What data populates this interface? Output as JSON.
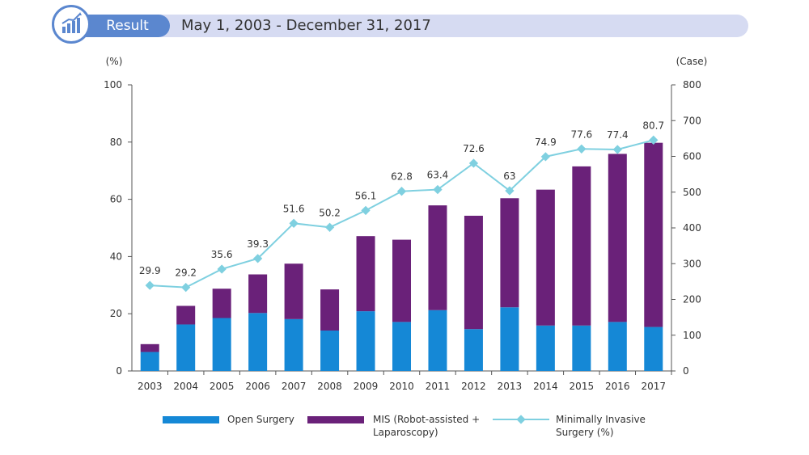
{
  "header": {
    "badge_label": "Result",
    "date_range": "May 1, 2003 - December 31, 2017"
  },
  "colors": {
    "open": "#1588d6",
    "mis": "#6a2179",
    "line": "#7fd0e0",
    "header_bar": "#d6dbf2",
    "pill": "#5b87cf"
  },
  "chart_data": {
    "type": "bar",
    "categories": [
      "2003",
      "2004",
      "2005",
      "2006",
      "2007",
      "2008",
      "2009",
      "2010",
      "2011",
      "2012",
      "2013",
      "2014",
      "2015",
      "2016",
      "2017"
    ],
    "series": [
      {
        "name": "Open Surgery",
        "type": "bar",
        "axis": "right",
        "values": [
          53,
          130,
          148,
          162,
          145,
          113,
          167,
          137,
          170,
          117,
          178,
          127,
          127,
          137,
          123
        ]
      },
      {
        "name": "MIS (Robot-assisted + Laparoscopy)",
        "type": "bar",
        "axis": "right",
        "values": [
          22,
          52,
          82,
          108,
          155,
          115,
          210,
          230,
          293,
          317,
          305,
          380,
          445,
          470,
          515
        ]
      },
      {
        "name": "Minimally Invasive Surgery (%)",
        "type": "line",
        "axis": "left",
        "values": [
          29.9,
          29.2,
          35.6,
          39.3,
          51.6,
          50.2,
          56.1,
          62.8,
          63.4,
          72.6,
          63,
          74.9,
          77.6,
          77.4,
          80.7
        ]
      }
    ],
    "stacked": true,
    "line_labels": [
      "29.9",
      "29.2",
      "35.6",
      "39.3",
      "51.6",
      "50.2",
      "56.1",
      "62.8",
      "63.4",
      "72.6",
      "63",
      "74.9",
      "77.6",
      "77.4",
      "80.7"
    ],
    "y_left": {
      "unit": "(%)",
      "ylim": [
        0,
        100
      ],
      "ticks": [
        "0",
        "20",
        "40",
        "60",
        "80",
        "100"
      ]
    },
    "y_right": {
      "unit": "(Case)",
      "ylim": [
        0,
        800
      ],
      "ticks": [
        "0",
        "100",
        "200",
        "300",
        "400",
        "500",
        "600",
        "700",
        "800"
      ]
    },
    "legend": {
      "position": "bottom",
      "items": [
        {
          "label": "Open Surgery"
        },
        {
          "label": "MIS (Robot-assisted +\nLaparoscopy)"
        },
        {
          "label": "Minimally Invasive\nSurgery (%)"
        }
      ]
    },
    "grid": false
  }
}
